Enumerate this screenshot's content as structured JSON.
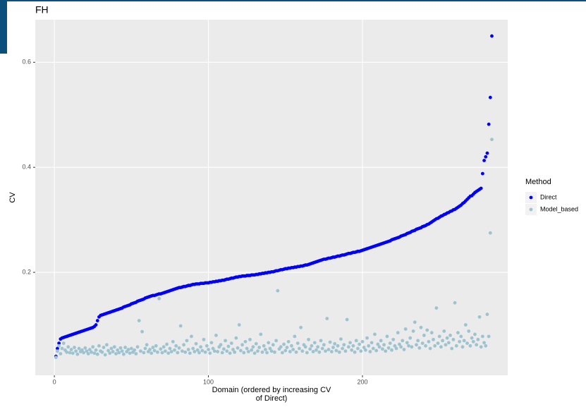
{
  "chart_data": {
    "type": "scatter",
    "title": "FH",
    "xlabel": "Domain (ordered by increasing CV\nof Direct)",
    "ylabel": "CV",
    "legend_title": "Method",
    "legend": "right",
    "grid": true,
    "xlim": [
      -12.4,
      294.3
    ],
    "ylim": [
      0.004,
      0.681
    ],
    "xticks": [
      0,
      100,
      200
    ],
    "yticks": [
      0.2,
      0.4,
      0.6
    ],
    "x": [
      1,
      2,
      3,
      4,
      5,
      6,
      7,
      8,
      9,
      10,
      11,
      12,
      13,
      14,
      15,
      16,
      17,
      18,
      19,
      20,
      21,
      22,
      23,
      24,
      25,
      26,
      27,
      28,
      29,
      30,
      31,
      32,
      33,
      34,
      35,
      36,
      37,
      38,
      39,
      40,
      41,
      42,
      43,
      44,
      45,
      46,
      47,
      48,
      49,
      50,
      51,
      52,
      53,
      54,
      55,
      56,
      57,
      58,
      59,
      60,
      61,
      62,
      63,
      64,
      65,
      66,
      67,
      68,
      69,
      70,
      71,
      72,
      73,
      74,
      75,
      76,
      77,
      78,
      79,
      80,
      81,
      82,
      83,
      84,
      85,
      86,
      87,
      88,
      89,
      90,
      91,
      92,
      93,
      94,
      95,
      96,
      97,
      98,
      99,
      100,
      101,
      102,
      103,
      104,
      105,
      106,
      107,
      108,
      109,
      110,
      111,
      112,
      113,
      114,
      115,
      116,
      117,
      118,
      119,
      120,
      121,
      122,
      123,
      124,
      125,
      126,
      127,
      128,
      129,
      130,
      131,
      132,
      133,
      134,
      135,
      136,
      137,
      138,
      139,
      140,
      141,
      142,
      143,
      144,
      145,
      146,
      147,
      148,
      149,
      150,
      151,
      152,
      153,
      154,
      155,
      156,
      157,
      158,
      159,
      160,
      161,
      162,
      163,
      164,
      165,
      166,
      167,
      168,
      169,
      170,
      171,
      172,
      173,
      174,
      175,
      176,
      177,
      178,
      179,
      180,
      181,
      182,
      183,
      184,
      185,
      186,
      187,
      188,
      189,
      190,
      191,
      192,
      193,
      194,
      195,
      196,
      197,
      198,
      199,
      200,
      201,
      202,
      203,
      204,
      205,
      206,
      207,
      208,
      209,
      210,
      211,
      212,
      213,
      214,
      215,
      216,
      217,
      218,
      219,
      220,
      221,
      222,
      223,
      224,
      225,
      226,
      227,
      228,
      229,
      230,
      231,
      232,
      233,
      234,
      235,
      236,
      237,
      238,
      239,
      240,
      241,
      242,
      243,
      244,
      245,
      246,
      247,
      248,
      249,
      250,
      251,
      252,
      253,
      254,
      255,
      256,
      257,
      258,
      259,
      260,
      261,
      262,
      263,
      264,
      265,
      266,
      267,
      268,
      269,
      270,
      271,
      272,
      273,
      274,
      275,
      276,
      277,
      278,
      279,
      280,
      281,
      282,
      283,
      284
    ],
    "series": [
      {
        "name": "Direct",
        "color": "#0000ff",
        "values": [
          0.04,
          0.055,
          0.065,
          0.073,
          0.075,
          0.076,
          0.077,
          0.078,
          0.079,
          0.08,
          0.081,
          0.082,
          0.083,
          0.084,
          0.085,
          0.086,
          0.087,
          0.088,
          0.089,
          0.09,
          0.091,
          0.092,
          0.093,
          0.094,
          0.095,
          0.097,
          0.1,
          0.108,
          0.115,
          0.118,
          0.119,
          0.12,
          0.121,
          0.122,
          0.123,
          0.124,
          0.125,
          0.126,
          0.127,
          0.128,
          0.129,
          0.13,
          0.131,
          0.132,
          0.134,
          0.135,
          0.136,
          0.137,
          0.138,
          0.14,
          0.141,
          0.142,
          0.143,
          0.145,
          0.146,
          0.147,
          0.148,
          0.149,
          0.151,
          0.152,
          0.153,
          0.154,
          0.155,
          0.156,
          0.156,
          0.157,
          0.158,
          0.159,
          0.159,
          0.16,
          0.161,
          0.162,
          0.163,
          0.164,
          0.165,
          0.166,
          0.167,
          0.168,
          0.169,
          0.17,
          0.171,
          0.171,
          0.172,
          0.173,
          0.173,
          0.174,
          0.175,
          0.175,
          0.176,
          0.177,
          0.177,
          0.178,
          0.178,
          0.178,
          0.179,
          0.179,
          0.179,
          0.18,
          0.18,
          0.18,
          0.181,
          0.181,
          0.182,
          0.182,
          0.183,
          0.183,
          0.184,
          0.184,
          0.185,
          0.185,
          0.186,
          0.187,
          0.187,
          0.188,
          0.189,
          0.189,
          0.19,
          0.191,
          0.191,
          0.192,
          0.192,
          0.193,
          0.193,
          0.193,
          0.194,
          0.194,
          0.194,
          0.195,
          0.195,
          0.195,
          0.196,
          0.196,
          0.197,
          0.197,
          0.198,
          0.198,
          0.199,
          0.199,
          0.2,
          0.2,
          0.201,
          0.201,
          0.202,
          0.203,
          0.203,
          0.204,
          0.205,
          0.205,
          0.206,
          0.207,
          0.207,
          0.208,
          0.208,
          0.209,
          0.209,
          0.21,
          0.21,
          0.211,
          0.211,
          0.212,
          0.212,
          0.213,
          0.214,
          0.214,
          0.215,
          0.216,
          0.217,
          0.218,
          0.219,
          0.22,
          0.221,
          0.222,
          0.223,
          0.224,
          0.225,
          0.225,
          0.226,
          0.227,
          0.227,
          0.228,
          0.229,
          0.229,
          0.23,
          0.231,
          0.231,
          0.232,
          0.233,
          0.233,
          0.234,
          0.235,
          0.236,
          0.236,
          0.237,
          0.238,
          0.238,
          0.239,
          0.24,
          0.24,
          0.241,
          0.242,
          0.243,
          0.244,
          0.245,
          0.246,
          0.247,
          0.248,
          0.249,
          0.25,
          0.251,
          0.252,
          0.253,
          0.254,
          0.255,
          0.256,
          0.257,
          0.258,
          0.259,
          0.26,
          0.262,
          0.263,
          0.264,
          0.265,
          0.266,
          0.267,
          0.269,
          0.27,
          0.271,
          0.272,
          0.274,
          0.275,
          0.276,
          0.278,
          0.279,
          0.28,
          0.282,
          0.283,
          0.284,
          0.285,
          0.287,
          0.288,
          0.289,
          0.291,
          0.292,
          0.294,
          0.296,
          0.298,
          0.3,
          0.302,
          0.303,
          0.305,
          0.307,
          0.308,
          0.31,
          0.311,
          0.313,
          0.314,
          0.316,
          0.317,
          0.319,
          0.32,
          0.322,
          0.324,
          0.326,
          0.328,
          0.331,
          0.333,
          0.336,
          0.339,
          0.342,
          0.345,
          0.346,
          0.349,
          0.352,
          0.354,
          0.356,
          0.358,
          0.36,
          0.388,
          0.413,
          0.42,
          0.427,
          0.482,
          0.533,
          0.65
        ]
      },
      {
        "name": "Model_based",
        "color": "#9dc3d0",
        "values": [
          0.038,
          0.05,
          0.06,
          0.045,
          0.055,
          0.065,
          0.052,
          0.048,
          0.058,
          0.047,
          0.053,
          0.046,
          0.057,
          0.05,
          0.044,
          0.055,
          0.049,
          0.052,
          0.047,
          0.056,
          0.05,
          0.045,
          0.053,
          0.048,
          0.058,
          0.046,
          0.052,
          0.044,
          0.06,
          0.05,
          0.048,
          0.057,
          0.043,
          0.062,
          0.051,
          0.046,
          0.055,
          0.049,
          0.058,
          0.045,
          0.052,
          0.047,
          0.056,
          0.05,
          0.044,
          0.057,
          0.049,
          0.053,
          0.046,
          0.055,
          0.048,
          0.052,
          0.045,
          0.058,
          0.108,
          0.05,
          0.087,
          0.047,
          0.055,
          0.062,
          0.049,
          0.053,
          0.046,
          0.057,
          0.051,
          0.06,
          0.048,
          0.15,
          0.054,
          0.047,
          0.058,
          0.05,
          0.063,
          0.046,
          0.055,
          0.049,
          0.068,
          0.052,
          0.06,
          0.047,
          0.056,
          0.098,
          0.05,
          0.062,
          0.048,
          0.07,
          0.053,
          0.046,
          0.078,
          0.055,
          0.049,
          0.064,
          0.052,
          0.047,
          0.058,
          0.051,
          0.072,
          0.048,
          0.06,
          0.053,
          0.046,
          0.066,
          0.055,
          0.05,
          0.08,
          0.049,
          0.058,
          0.062,
          0.047,
          0.054,
          0.07,
          0.05,
          0.059,
          0.046,
          0.065,
          0.053,
          0.048,
          0.075,
          0.056,
          0.1,
          0.051,
          0.062,
          0.047,
          0.068,
          0.055,
          0.049,
          0.072,
          0.052,
          0.058,
          0.046,
          0.064,
          0.05,
          0.057,
          0.082,
          0.048,
          0.06,
          0.053,
          0.047,
          0.066,
          0.055,
          0.05,
          0.062,
          0.048,
          0.07,
          0.165,
          0.054,
          0.058,
          0.047,
          0.063,
          0.051,
          0.057,
          0.068,
          0.049,
          0.06,
          0.053,
          0.078,
          0.048,
          0.065,
          0.055,
          0.095,
          0.05,
          0.062,
          0.058,
          0.047,
          0.072,
          0.054,
          0.06,
          0.049,
          0.066,
          0.052,
          0.058,
          0.048,
          0.07,
          0.055,
          0.062,
          0.05,
          0.112,
          0.053,
          0.067,
          0.049,
          0.057,
          0.064,
          0.051,
          0.06,
          0.048,
          0.073,
          0.055,
          0.062,
          0.05,
          0.11,
          0.058,
          0.066,
          0.052,
          0.06,
          0.048,
          0.07,
          0.055,
          0.063,
          0.05,
          0.068,
          0.057,
          0.052,
          0.075,
          0.06,
          0.049,
          0.066,
          0.055,
          0.082,
          0.051,
          0.063,
          0.058,
          0.07,
          0.054,
          0.062,
          0.05,
          0.078,
          0.056,
          0.065,
          0.052,
          0.072,
          0.06,
          0.055,
          0.085,
          0.063,
          0.058,
          0.07,
          0.053,
          0.092,
          0.066,
          0.06,
          0.075,
          0.058,
          0.088,
          0.105,
          0.062,
          0.07,
          0.056,
          0.095,
          0.065,
          0.08,
          0.06,
          0.09,
          0.068,
          0.055,
          0.085,
          0.072,
          0.06,
          0.132,
          0.065,
          0.078,
          0.058,
          0.07,
          0.088,
          0.062,
          0.075,
          0.066,
          0.08,
          0.055,
          0.072,
          0.142,
          0.06,
          0.085,
          0.068,
          0.078,
          0.058,
          0.07,
          0.1,
          0.065,
          0.088,
          0.06,
          0.075,
          0.068,
          0.082,
          0.062,
          0.072,
          0.115,
          0.058,
          0.078,
          0.066,
          0.06,
          0.12,
          0.078,
          0.275,
          0.453
        ]
      }
    ]
  }
}
